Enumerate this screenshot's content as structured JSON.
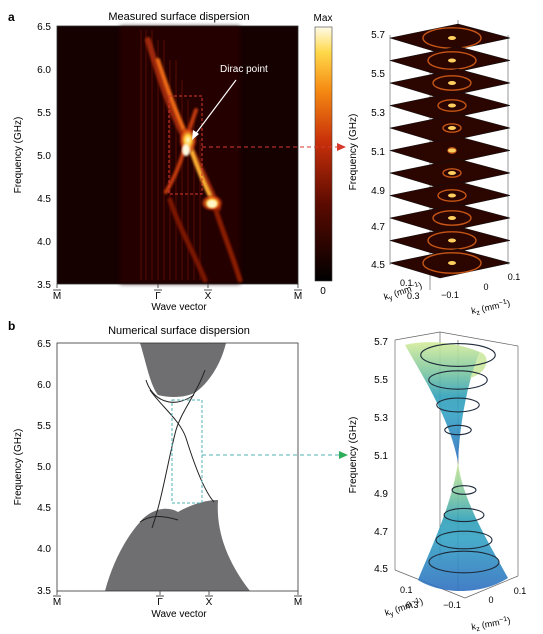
{
  "figure": {
    "panels": {
      "a": {
        "letter": "a",
        "title": "Measured surface dispersion",
        "ylabel": "Frequency (GHz)",
        "xlabel": "Wave vector",
        "yticks": [
          "6.5",
          "6.0",
          "5.5",
          "5.0",
          "4.5",
          "4.0",
          "3.5"
        ],
        "xticks": [
          "M",
          "Γ",
          "X",
          "M"
        ],
        "annotation": "Dirac point",
        "colorbar": {
          "max_label": "Max",
          "min_label": "0"
        }
      },
      "a3d": {
        "zlabel": "Frequency (GHz)",
        "zticks": [
          "5.7",
          "5.5",
          "5.3",
          "5.1",
          "4.9",
          "4.7",
          "4.5"
        ],
        "ky_label": "k",
        "ky_sub": "y",
        "ky_unit": " (mm",
        "ky_unit_sup": "−1",
        "ky_unit_end": ")",
        "ky_ticks": [
          "0.1",
          "0.3"
        ],
        "kz_label": "k",
        "kz_sub": "z",
        "kz_unit": " (mm",
        "kz_unit_sup": "−1",
        "kz_unit_end": ")",
        "kz_ticks": [
          "−0.1",
          "0",
          "0.1"
        ]
      },
      "b": {
        "letter": "b",
        "title": "Numerical surface dispersion",
        "ylabel": "Frequency (GHz)",
        "xlabel": "Wave vector",
        "yticks": [
          "6.5",
          "6.0",
          "5.5",
          "5.0",
          "4.5",
          "4.0",
          "3.5"
        ],
        "xticks": [
          "M",
          "Γ",
          "X",
          "M"
        ]
      },
      "b3d": {
        "zlabel": "Frequency (GHz)",
        "zticks": [
          "5.7",
          "5.5",
          "5.3",
          "5.1",
          "4.9",
          "4.7",
          "4.5"
        ],
        "ky_label": "k",
        "ky_sub": "y",
        "ky_unit": " (mm",
        "ky_unit_sup": "−1",
        "ky_unit_end": ")",
        "ky_ticks": [
          "0.1",
          "0.3"
        ],
        "kz_label": "k",
        "kz_sub": "z",
        "kz_unit": " (mm",
        "kz_unit_sup": "−1",
        "kz_unit_end": ")",
        "kz_ticks": [
          "−0.1",
          "0",
          "0.1"
        ]
      }
    },
    "colors": {
      "heat_bg": "#1a0200",
      "heat_hot": "#fff3a0",
      "bulk_band": "#6f6f72",
      "red_dash": "#d8382c",
      "teal_dash": "#4fb2b5",
      "green_arrow": "#2dae5a"
    }
  }
}
